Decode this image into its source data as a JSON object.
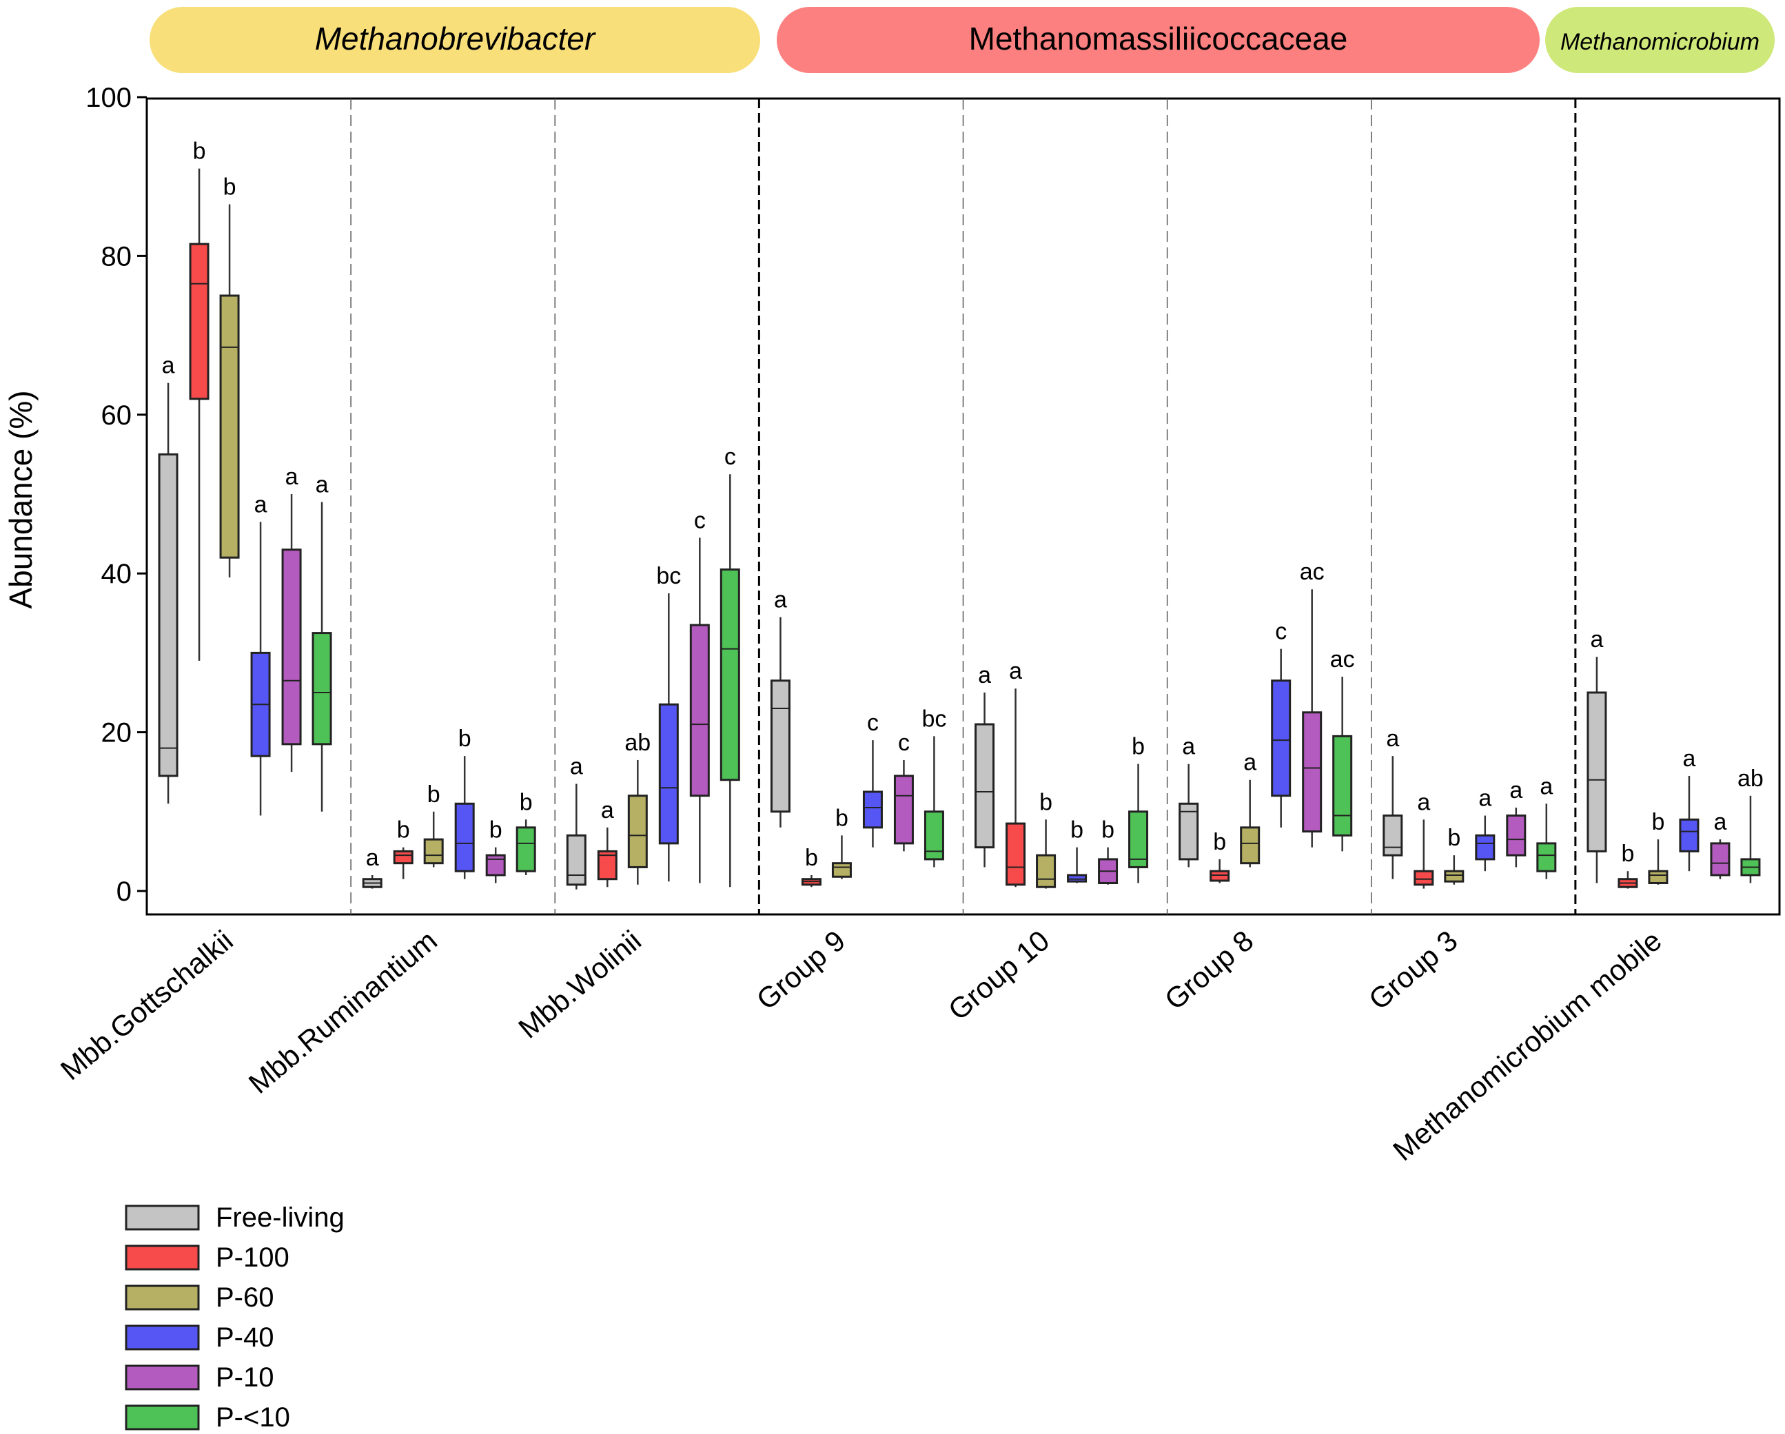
{
  "chart_data": {
    "type": "box",
    "ylabel": "Abundance (%)",
    "ylim": [
      -3,
      100
    ],
    "yticks": [
      0,
      20,
      40,
      60,
      80,
      100
    ],
    "groups": [
      {
        "label": "Methanobrevibacter",
        "italic": true,
        "color": "#f8df7a",
        "taxa": [
          0,
          1,
          2
        ]
      },
      {
        "label": "Methanomassiliicoccaceae",
        "italic": false,
        "color": "#fc8080",
        "taxa": [
          3,
          4,
          5,
          6
        ]
      },
      {
        "label": "Methanomicrobium",
        "italic": true,
        "color": "#cfe87a",
        "taxa": [
          7
        ]
      }
    ],
    "legend": [
      {
        "name": "Free-living",
        "color": "#c4c4c4"
      },
      {
        "name": "P-100",
        "color": "#f74a4a"
      },
      {
        "name": "P-60",
        "color": "#b5b064"
      },
      {
        "name": "P-40",
        "color": "#5656f4"
      },
      {
        "name": "P-10",
        "color": "#b45bbf"
      },
      {
        "name": "P-<10",
        "color": "#4fc257"
      }
    ],
    "categories": [
      {
        "name": "Mbb.Gottschalkii",
        "boxes": [
          {
            "whislo": 11,
            "q1": 14.5,
            "med": 18,
            "q3": 55,
            "whishi": 64,
            "sig": "a"
          },
          {
            "whislo": 29,
            "q1": 62,
            "med": 76.5,
            "q3": 81.5,
            "whishi": 91,
            "sig": "b"
          },
          {
            "whislo": 39.5,
            "q1": 42,
            "med": 68.5,
            "q3": 75,
            "whishi": 86.5,
            "sig": "b"
          },
          {
            "whislo": 9.5,
            "q1": 17,
            "med": 23.5,
            "q3": 30,
            "whishi": 46.5,
            "sig": "a"
          },
          {
            "whislo": 15,
            "q1": 18.5,
            "med": 26.5,
            "q3": 43,
            "whishi": 50,
            "sig": "a"
          },
          {
            "whislo": 10,
            "q1": 18.5,
            "med": 25,
            "q3": 32.5,
            "whishi": 49,
            "sig": "a"
          }
        ]
      },
      {
        "name": "Mbb.Ruminantium",
        "boxes": [
          {
            "whislo": 0.3,
            "q1": 0.5,
            "med": 1,
            "q3": 1.5,
            "whishi": 2,
            "sig": "a"
          },
          {
            "whislo": 1.5,
            "q1": 3.5,
            "med": 4.5,
            "q3": 5,
            "whishi": 5.5,
            "sig": "b"
          },
          {
            "whislo": 3,
            "q1": 3.5,
            "med": 4.5,
            "q3": 6.5,
            "whishi": 10,
            "sig": "b"
          },
          {
            "whislo": 1.5,
            "q1": 2.5,
            "med": 6,
            "q3": 11,
            "whishi": 17,
            "sig": "b"
          },
          {
            "whislo": 1,
            "q1": 2,
            "med": 4,
            "q3": 4.5,
            "whishi": 5.5,
            "sig": "b"
          },
          {
            "whislo": 2,
            "q1": 2.5,
            "med": 6,
            "q3": 8,
            "whishi": 9,
            "sig": "b"
          }
        ]
      },
      {
        "name": "Mbb.Wolinii",
        "boxes": [
          {
            "whislo": 0.2,
            "q1": 0.8,
            "med": 2,
            "q3": 7,
            "whishi": 13.5,
            "sig": "a"
          },
          {
            "whislo": 0.5,
            "q1": 1.5,
            "med": 4.5,
            "q3": 5,
            "whishi": 8,
            "sig": "a"
          },
          {
            "whislo": 0.8,
            "q1": 3,
            "med": 7,
            "q3": 12,
            "whishi": 16.5,
            "sig": "ab"
          },
          {
            "whislo": 1.2,
            "q1": 6,
            "med": 13,
            "q3": 23.5,
            "whishi": 37.5,
            "sig": "bc"
          },
          {
            "whislo": 1,
            "q1": 12,
            "med": 21,
            "q3": 33.5,
            "whishi": 44.5,
            "sig": "c"
          },
          {
            "whislo": 0.5,
            "q1": 14,
            "med": 30.5,
            "q3": 40.5,
            "whishi": 52.5,
            "sig": "c"
          }
        ]
      },
      {
        "name": "Group 9",
        "boxes": [
          {
            "whislo": 8,
            "q1": 10,
            "med": 23,
            "q3": 26.5,
            "whishi": 34.5,
            "sig": "a"
          },
          {
            "whislo": 0.5,
            "q1": 0.8,
            "med": 1.2,
            "q3": 1.5,
            "whishi": 2,
            "sig": "b"
          },
          {
            "whislo": 1.5,
            "q1": 1.8,
            "med": 3,
            "q3": 3.5,
            "whishi": 7,
            "sig": "b"
          },
          {
            "whislo": 5.5,
            "q1": 8,
            "med": 10.5,
            "q3": 12.5,
            "whishi": 19,
            "sig": "c"
          },
          {
            "whislo": 5,
            "q1": 6,
            "med": 12,
            "q3": 14.5,
            "whishi": 16.5,
            "sig": "c"
          },
          {
            "whislo": 3,
            "q1": 4,
            "med": 5,
            "q3": 10,
            "whishi": 19.5,
            "sig": "bc"
          }
        ]
      },
      {
        "name": "Group 10",
        "boxes": [
          {
            "whislo": 3,
            "q1": 5.5,
            "med": 12.5,
            "q3": 21,
            "whishi": 25,
            "sig": "a"
          },
          {
            "whislo": 0.5,
            "q1": 0.8,
            "med": 3,
            "q3": 8.5,
            "whishi": 25.5,
            "sig": "a"
          },
          {
            "whislo": 0.3,
            "q1": 0.5,
            "med": 1.5,
            "q3": 4.5,
            "whishi": 9,
            "sig": "b"
          },
          {
            "whislo": 1,
            "q1": 1.2,
            "med": 1.5,
            "q3": 2,
            "whishi": 5.5,
            "sig": "b"
          },
          {
            "whislo": 0.8,
            "q1": 1,
            "med": 2.5,
            "q3": 4,
            "whishi": 5.5,
            "sig": "b"
          },
          {
            "whislo": 1,
            "q1": 3,
            "med": 4,
            "q3": 10,
            "whishi": 16,
            "sig": "b"
          }
        ]
      },
      {
        "name": "Group 8",
        "boxes": [
          {
            "whislo": 3,
            "q1": 4,
            "med": 10,
            "q3": 11,
            "whishi": 16,
            "sig": "a"
          },
          {
            "whislo": 1,
            "q1": 1.3,
            "med": 2,
            "q3": 2.5,
            "whishi": 4,
            "sig": "b"
          },
          {
            "whislo": 3,
            "q1": 3.5,
            "med": 6,
            "q3": 8,
            "whishi": 14,
            "sig": "a"
          },
          {
            "whislo": 8,
            "q1": 12,
            "med": 19,
            "q3": 26.5,
            "whishi": 30.5,
            "sig": "c"
          },
          {
            "whislo": 5.5,
            "q1": 7.5,
            "med": 15.5,
            "q3": 22.5,
            "whishi": 38,
            "sig": "ac"
          },
          {
            "whislo": 5,
            "q1": 7,
            "med": 9.5,
            "q3": 19.5,
            "whishi": 27,
            "sig": "ac"
          }
        ]
      },
      {
        "name": "Group 3",
        "boxes": [
          {
            "whislo": 1.5,
            "q1": 4.5,
            "med": 5.5,
            "q3": 9.5,
            "whishi": 17,
            "sig": "a"
          },
          {
            "whislo": 0.3,
            "q1": 0.8,
            "med": 1.5,
            "q3": 2.5,
            "whishi": 9,
            "sig": "a"
          },
          {
            "whislo": 0.8,
            "q1": 1.2,
            "med": 2,
            "q3": 2.5,
            "whishi": 4.5,
            "sig": "b"
          },
          {
            "whislo": 2.5,
            "q1": 4,
            "med": 6,
            "q3": 7,
            "whishi": 9.5,
            "sig": "a"
          },
          {
            "whislo": 3,
            "q1": 4.5,
            "med": 6.5,
            "q3": 9.5,
            "whishi": 10.5,
            "sig": "a"
          },
          {
            "whislo": 1.5,
            "q1": 2.5,
            "med": 4.5,
            "q3": 6,
            "whishi": 11,
            "sig": "a"
          }
        ]
      },
      {
        "name": "Methanomicrobium mobile",
        "boxes": [
          {
            "whislo": 1,
            "q1": 5,
            "med": 14,
            "q3": 25,
            "whishi": 29.5,
            "sig": "a"
          },
          {
            "whislo": 0.3,
            "q1": 0.5,
            "med": 1,
            "q3": 1.5,
            "whishi": 2.5,
            "sig": "b"
          },
          {
            "whislo": 0.8,
            "q1": 1,
            "med": 2,
            "q3": 2.5,
            "whishi": 6.5,
            "sig": "b"
          },
          {
            "whislo": 2.5,
            "q1": 5,
            "med": 7.5,
            "q3": 9,
            "whishi": 14.5,
            "sig": "a"
          },
          {
            "whislo": 1.5,
            "q1": 2,
            "med": 3.5,
            "q3": 6,
            "whishi": 6.5,
            "sig": "a"
          },
          {
            "whislo": 1,
            "q1": 2,
            "med": 3,
            "q3": 4,
            "whishi": 12,
            "sig": "ab"
          }
        ]
      }
    ]
  }
}
